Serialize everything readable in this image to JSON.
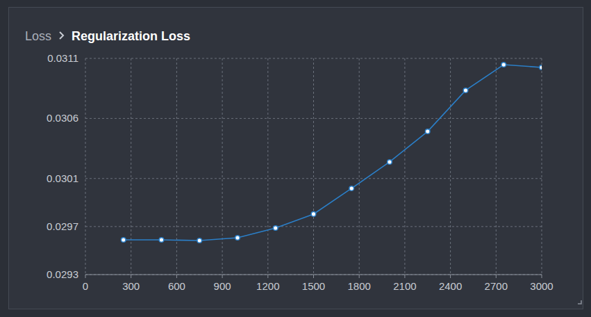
{
  "chart_data": {
    "type": "line",
    "section": "Loss",
    "title": "Regularization Loss",
    "x": [
      250,
      500,
      750,
      1000,
      1250,
      1500,
      1750,
      2000,
      2250,
      2500,
      2750,
      3000
    ],
    "values": [
      0.029589,
      0.029589,
      0.029584,
      0.029607,
      0.029688,
      0.029804,
      0.030018,
      0.030238,
      0.030492,
      0.030834,
      0.031048,
      0.031025
    ],
    "color": "#2b7fc8",
    "marker": "circle",
    "xlim": [
      0,
      3000
    ],
    "xticks": [
      0,
      300,
      600,
      900,
      1200,
      1500,
      1800,
      2100,
      2400,
      2700,
      3000
    ],
    "ylim": [
      0.0293,
      0.0311
    ],
    "yticks": [
      0.0293,
      0.0297,
      0.0301,
      0.0306,
      0.0311
    ],
    "grid": true
  }
}
